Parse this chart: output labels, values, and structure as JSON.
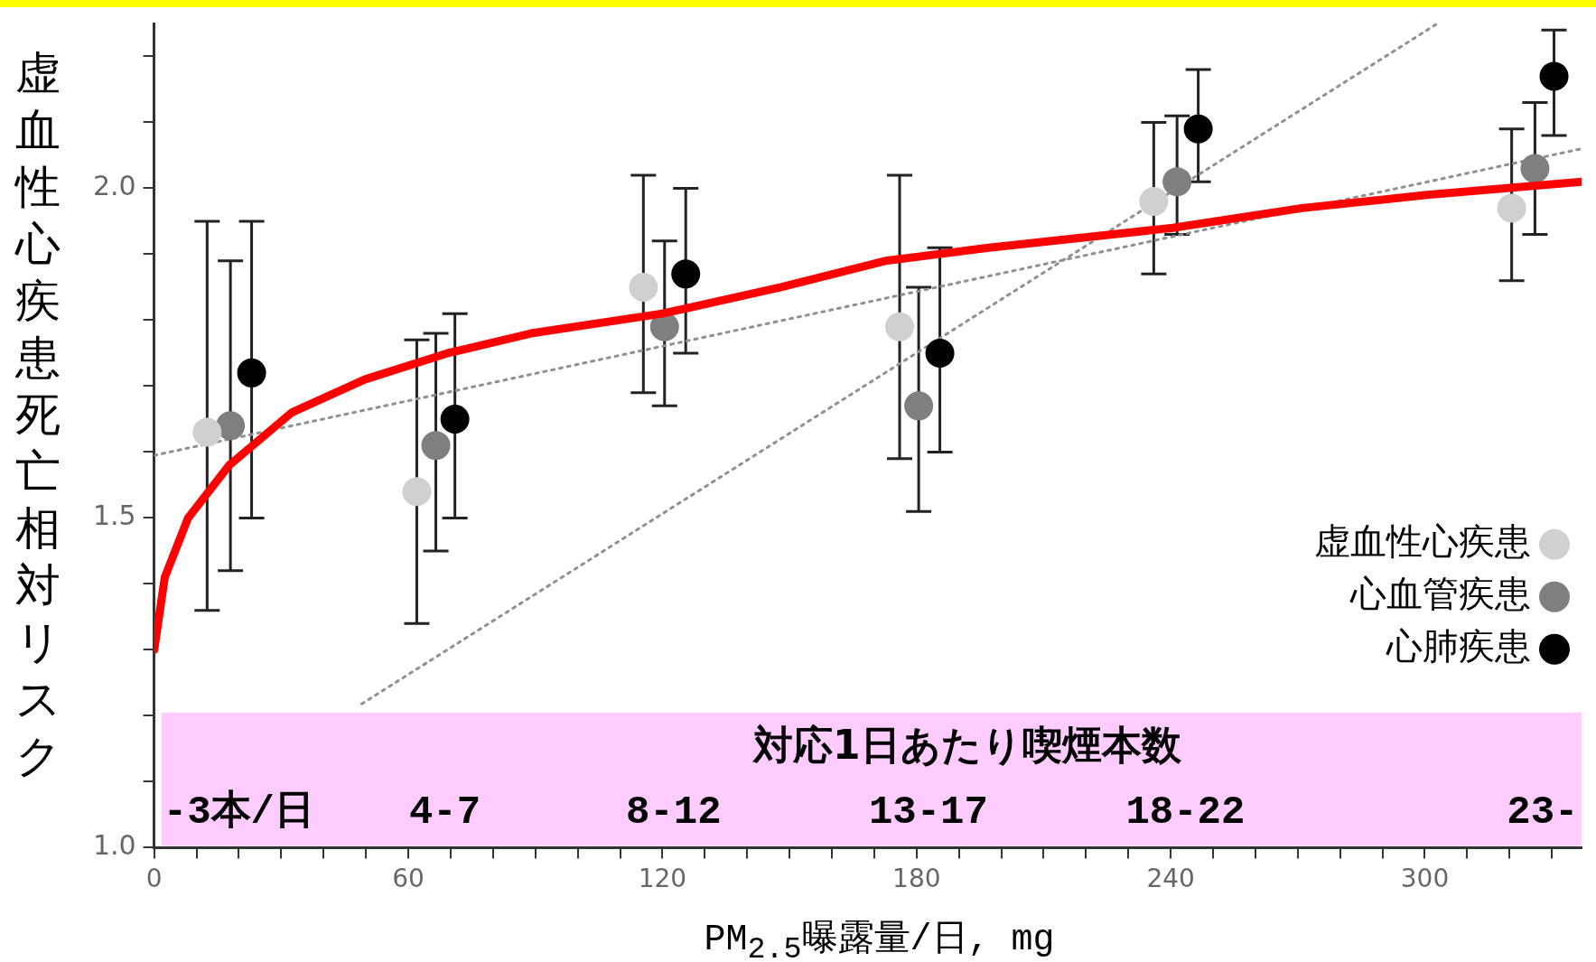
{
  "chart_data": {
    "type": "scatter",
    "xlabel": "PM$_{2.5}$曝露量/日, mg",
    "ylabel": "虚血性心疾患死亡相対リスク",
    "xlim": [
      0,
      337
    ],
    "ylim": [
      1,
      2.25
    ],
    "xticks": [
      0,
      {
        "value": 10,
        "label": null
      },
      {
        "value": 20,
        "label": null
      },
      {
        "value": 30,
        "label": null
      },
      {
        "value": 40,
        "label": null
      },
      {
        "value": 50,
        "label": null
      },
      60,
      {
        "value": 70,
        "label": null
      },
      {
        "value": 80,
        "label": null
      },
      {
        "value": 90,
        "label": null
      },
      {
        "value": 100,
        "label": null
      },
      {
        "value": 110,
        "label": null
      },
      120,
      {
        "value": 130,
        "label": null
      },
      {
        "value": 140,
        "label": null
      },
      {
        "value": 150,
        "label": null
      },
      {
        "value": 160,
        "label": null
      },
      {
        "value": 170,
        "label": null
      },
      180,
      {
        "value": 190,
        "label": null
      },
      {
        "value": 200,
        "label": null
      },
      {
        "value": 210,
        "label": null
      },
      {
        "value": 220,
        "label": null
      },
      {
        "value": 230,
        "label": null
      },
      240,
      {
        "value": 250,
        "label": null
      },
      {
        "value": 260,
        "label": null
      },
      {
        "value": 270,
        "label": null
      },
      {
        "value": 280,
        "label": null
      },
      {
        "value": 290,
        "label": null
      },
      300,
      {
        "value": 310,
        "label": null
      },
      {
        "value": 320,
        "label": null
      },
      {
        "value": 330,
        "label": null
      }
    ],
    "yticks": [
      {
        "value": 1,
        "label": "1.0"
      },
      {
        "value": 1.1,
        "label": null
      },
      {
        "value": 1.2,
        "label": null
      },
      {
        "value": 1.3,
        "label": null
      },
      {
        "value": 1.4,
        "label": null
      },
      {
        "value": 1.5,
        "label": "1.5"
      },
      {
        "value": 1.6,
        "label": null
      },
      {
        "value": 1.7,
        "label": null
      },
      {
        "value": 1.8,
        "label": null
      },
      {
        "value": 1.9,
        "label": null
      },
      {
        "value": 2,
        "label": "2.0"
      },
      {
        "value": 2.1,
        "label": null
      },
      {
        "value": 2.2,
        "label": null
      }
    ],
    "marker": "circle",
    "legend": "bottom right",
    "series": [
      {
        "type": "line",
        "color": "#909090",
        "line_style": "dotted",
        "marker": "none",
        "x": [
          0,
          337
        ],
        "values": [
          1.595,
          2.06
        ]
      },
      {
        "type": "line",
        "color": "#909090",
        "line_style": "dotted",
        "marker": "none",
        "x": [
          49,
          303
        ],
        "values": [
          1.218,
          2.25
        ]
      },
      {
        "name": "虚血性心疾患",
        "color": "#d0d0d0",
        "x": [
          12.5,
          62,
          115.5,
          176,
          236,
          320.5
        ],
        "values": [
          1.63,
          1.54,
          1.85,
          1.79,
          1.98,
          1.97
        ],
        "errors": [
          [
            1.36,
            1.95
          ],
          [
            1.34,
            1.77
          ],
          [
            1.69,
            2.02
          ],
          [
            1.59,
            2.02
          ],
          [
            1.87,
            2.1
          ],
          [
            1.86,
            2.09
          ]
        ]
      },
      {
        "name": "心血管疾患",
        "color": "#7f7f7f",
        "x": [
          18,
          66.5,
          120.5,
          180.5,
          241.5,
          326
        ],
        "values": [
          1.64,
          1.61,
          1.79,
          1.67,
          2.01,
          2.03
        ],
        "errors": [
          [
            1.42,
            1.89
          ],
          [
            1.45,
            1.78
          ],
          [
            1.67,
            1.92
          ],
          [
            1.51,
            1.85
          ],
          [
            1.93,
            2.11
          ],
          [
            1.93,
            2.13
          ]
        ]
      },
      {
        "name": "心肺疾患",
        "color": "#000000",
        "x": [
          23,
          71,
          125.5,
          185.5,
          246.5,
          330.5
        ],
        "values": [
          1.72,
          1.65,
          1.87,
          1.75,
          2.09,
          2.17
        ],
        "errors": [
          [
            1.5,
            1.95
          ],
          [
            1.5,
            1.81
          ],
          [
            1.75,
            2
          ],
          [
            1.6,
            1.91
          ],
          [
            2.01,
            2.18
          ],
          [
            2.08,
            2.24
          ]
        ]
      },
      {
        "type": "line",
        "color": "#ff0000",
        "line_style": "solid",
        "marker": "none",
        "x": [
          0,
          2.5,
          8,
          17.7,
          32.5,
          49.7,
          69.3,
          89,
          120,
          148,
          172.6,
          197,
          240.5,
          271,
          300.5,
          337
        ],
        "values": [
          1.3,
          1.41,
          1.5,
          1.58,
          1.66,
          1.71,
          1.75,
          1.78,
          1.81,
          1.85,
          1.89,
          1.91,
          1.94,
          1.97,
          1.99,
          2.01
        ]
      }
    ],
    "bands": [
      {
        "axis": "y",
        "from": 1,
        "to": 1.205,
        "label": "対応1日あたり喫煙本数",
        "color": "#ffccff"
      }
    ],
    "annotations": [
      "-3本/日",
      "4-7",
      "8-12",
      "13-17",
      "18-22",
      "23-"
    ]
  }
}
